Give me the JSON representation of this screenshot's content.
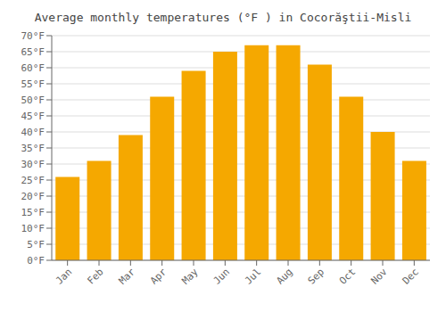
{
  "chart_data": {
    "type": "bar",
    "title": "Average monthly temperatures (°F ) in Cocorăştii-Misli",
    "categories": [
      "Jan",
      "Feb",
      "Mar",
      "Apr",
      "May",
      "Jun",
      "Jul",
      "Aug",
      "Sep",
      "Oct",
      "Nov",
      "Dec"
    ],
    "values": [
      26,
      31,
      39,
      51,
      59,
      65,
      67,
      67,
      61,
      51,
      40,
      31
    ],
    "color": "#F5A800",
    "ylim": [
      0,
      70
    ],
    "yticks": [
      {
        "value": 0,
        "label": "0°F"
      },
      {
        "value": 5,
        "label": "5°F"
      },
      {
        "value": 10,
        "label": "10°F"
      },
      {
        "value": 15,
        "label": "15°F"
      },
      {
        "value": 20,
        "label": "20°F"
      },
      {
        "value": 25,
        "label": "25°F"
      },
      {
        "value": 30,
        "label": "30°F"
      },
      {
        "value": 35,
        "label": "35°F"
      },
      {
        "value": 40,
        "label": "40°F"
      },
      {
        "value": 45,
        "label": "45°F"
      },
      {
        "value": 50,
        "label": "50°F"
      },
      {
        "value": 55,
        "label": "55°F"
      },
      {
        "value": 60,
        "label": "60°F"
      },
      {
        "value": 65,
        "label": "65°F"
      },
      {
        "value": 70,
        "label": "70°F"
      }
    ],
    "grid": true
  }
}
